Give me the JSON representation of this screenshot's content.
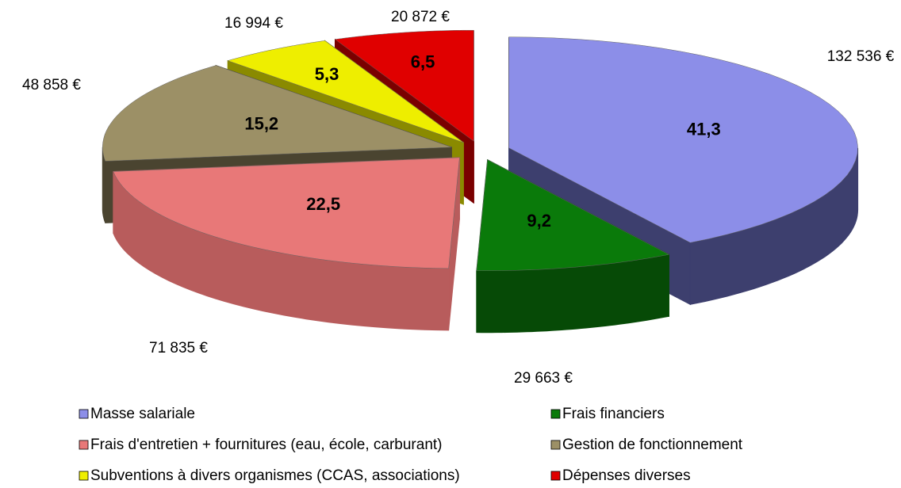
{
  "chart_data": {
    "type": "pie3d",
    "categories": [
      "Masse salariale",
      "Frais financiers",
      "Frais d'entretien + fournitures (eau, école, carburant)",
      "Gestion de fonctionnement",
      "Subventions à divers organismes (CCAS, associations)",
      "Dépenses diverses"
    ],
    "values": [
      41.3,
      9.2,
      22.5,
      15.2,
      5.3,
      6.5
    ],
    "value_labels": [
      "41,3",
      "9,2",
      "22,5",
      "15,2",
      "5,3",
      "6,5"
    ],
    "amount_labels": [
      "132 536 €",
      "29 663 €",
      "71 835 €",
      "48 858 €",
      "16 994 €",
      "20 872 €"
    ],
    "colors": [
      "#8c8ee8",
      "#0a7a0a",
      "#e87878",
      "#9c9066",
      "#eeee00",
      "#e00000"
    ],
    "side_colors": [
      "#3d3f6e",
      "#064a06",
      "#b85c5c",
      "#4a4430",
      "#8a8a00",
      "#7a0000"
    ]
  }
}
